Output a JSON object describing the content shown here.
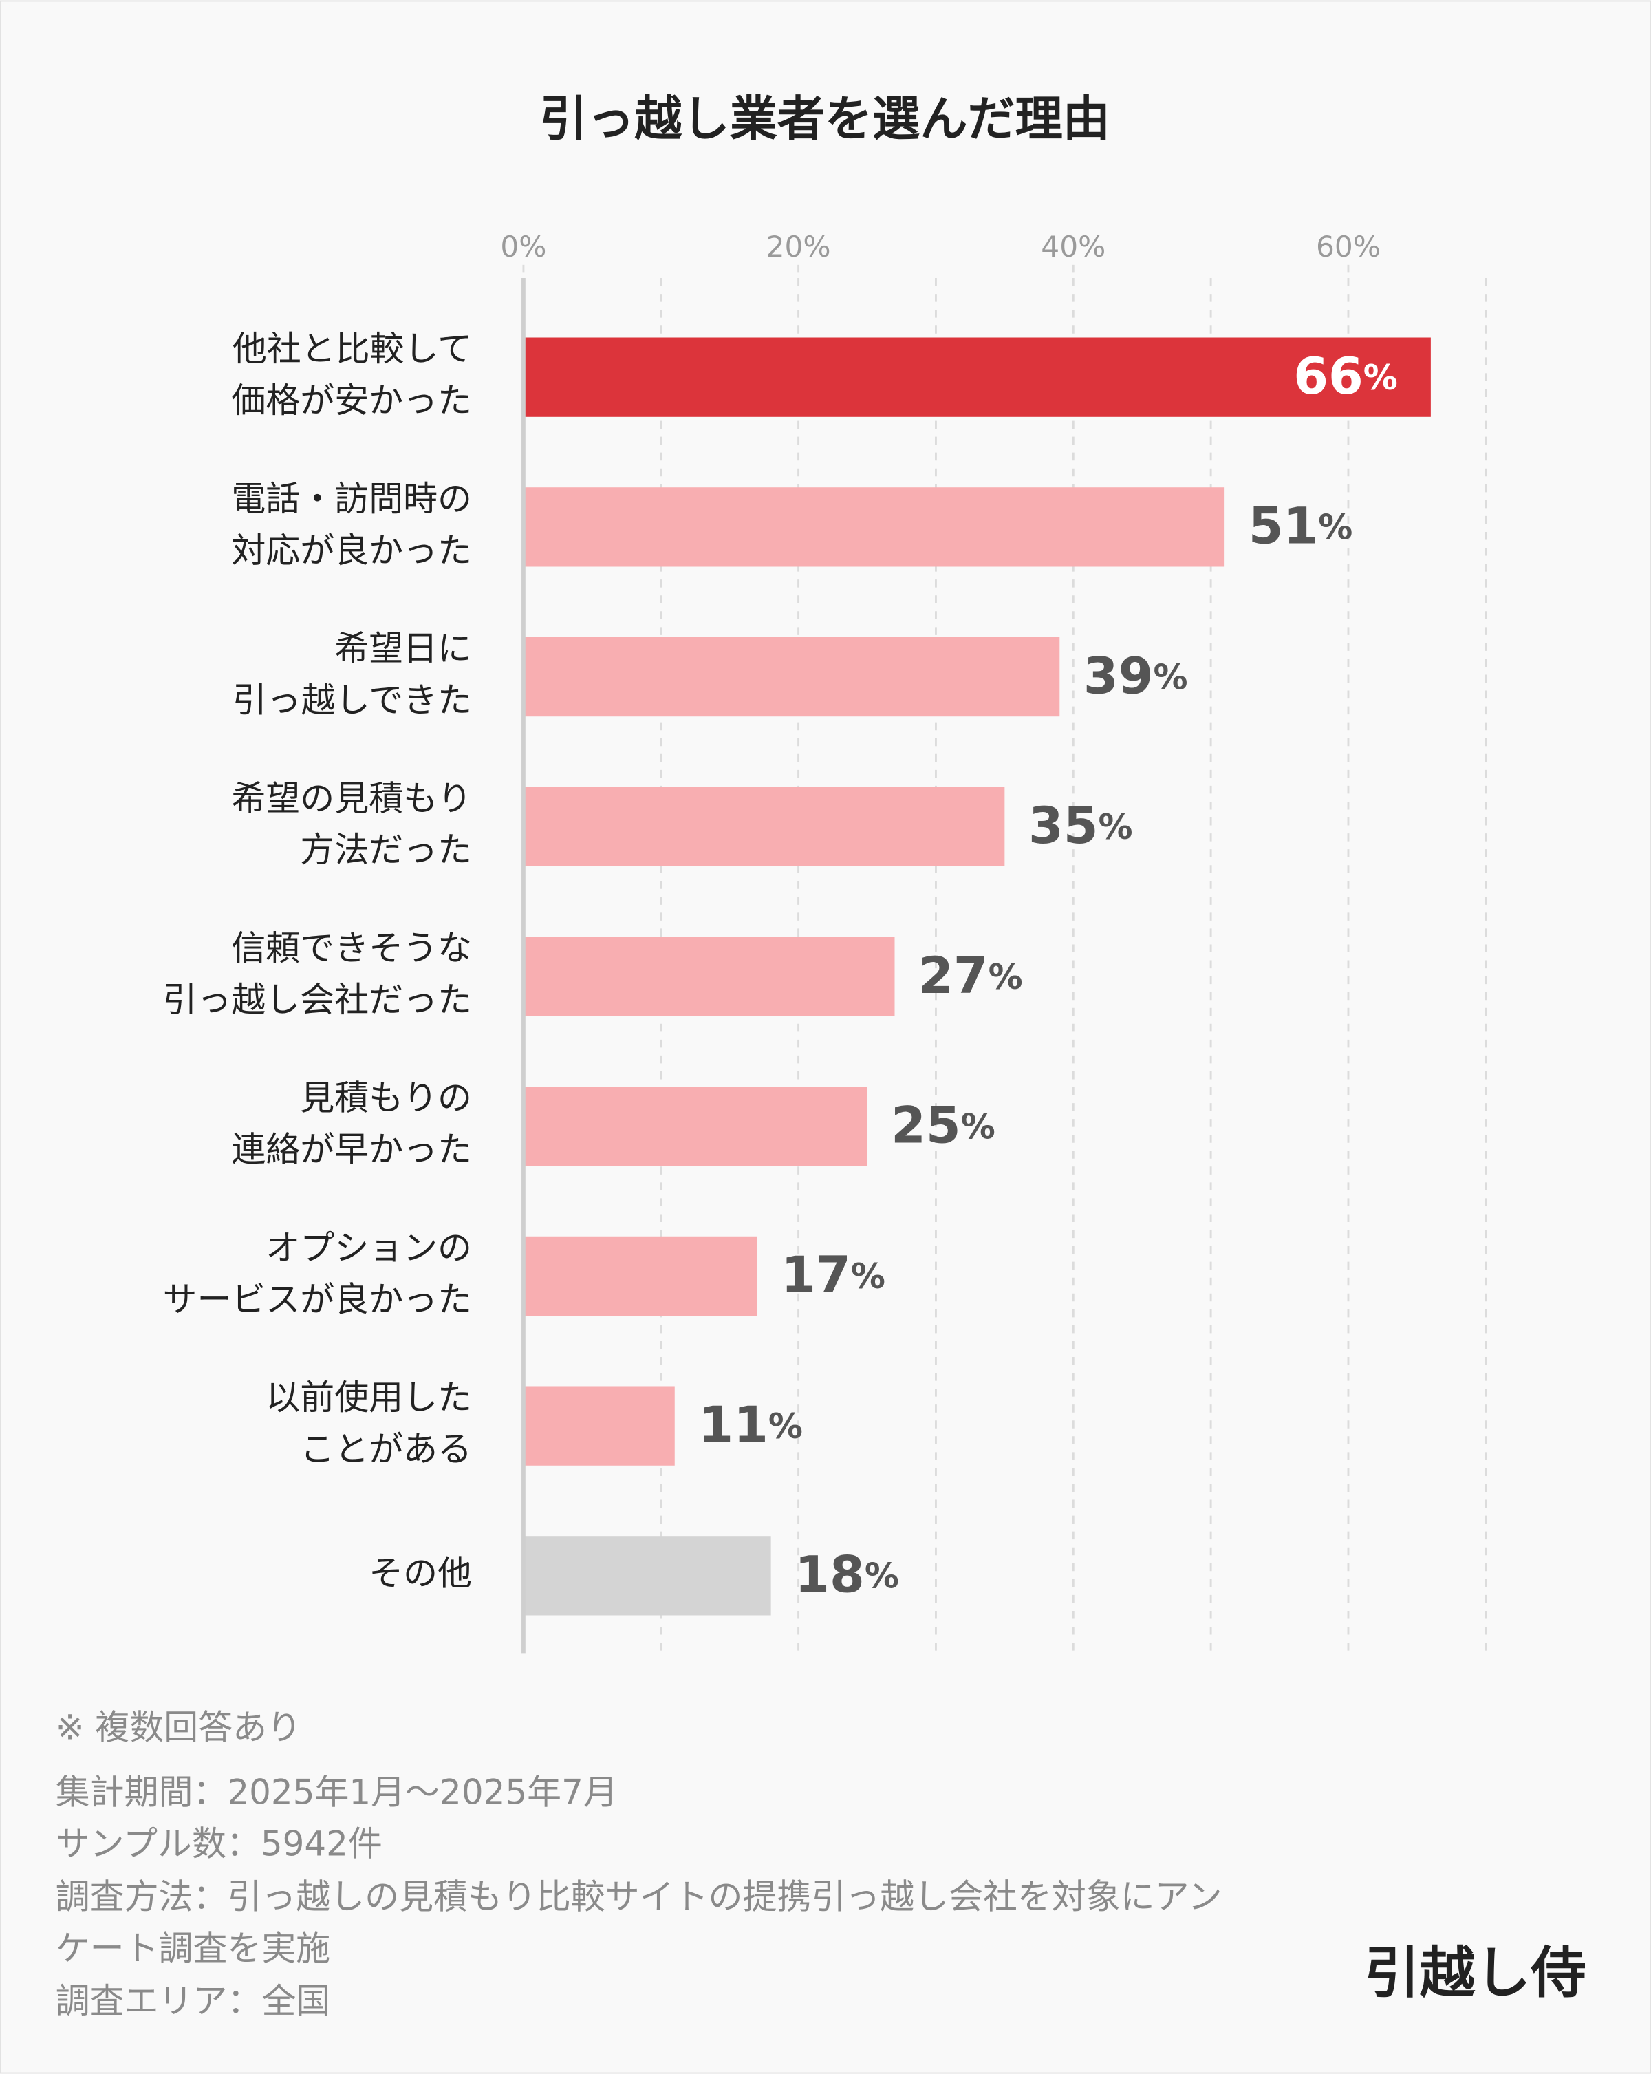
{
  "chart_data": {
    "type": "hbar",
    "title": "引っ越し業者を選んだ理由",
    "categories": [
      [
        "他社と比較して",
        "価格が安かった"
      ],
      [
        "電話・訪問時の",
        "対応が良かった"
      ],
      [
        "希望日に",
        "引っ越しできた"
      ],
      [
        "希望の見積もり",
        "方法だった"
      ],
      [
        "信頼できそうな",
        "引っ越し会社だった"
      ],
      [
        "見積もりの",
        "連絡が早かった"
      ],
      [
        "オプションの",
        "サービスが良かった"
      ],
      [
        "以前使用した",
        "ことがある"
      ],
      [
        "その他"
      ]
    ],
    "values": [
      66,
      51,
      39,
      35,
      27,
      25,
      17,
      11,
      18
    ],
    "value_labels": [
      "66%",
      "51%",
      "39%",
      "35%",
      "27%",
      "25%",
      "17%",
      "11%",
      "18%"
    ],
    "colors": [
      "#dc343b",
      "#f8aeb1",
      "#f8aeb1",
      "#f8aeb1",
      "#f8aeb1",
      "#f8aeb1",
      "#f8aeb1",
      "#f8aeb1",
      "#d4d4d4"
    ],
    "highlight_index": 0,
    "xlim": [
      0,
      70
    ],
    "xticks": [
      {
        "value": 0,
        "label": "0%"
      },
      {
        "value": 20,
        "label": "20%"
      },
      {
        "value": 40,
        "label": "40%"
      },
      {
        "value": 60,
        "label": "60%"
      }
    ],
    "xgrid": [
      10,
      20,
      30,
      40,
      50,
      60,
      70
    ],
    "grid": true
  },
  "notes": [
    "※ 複数回答あり",
    "集計期間：2025年1月～2025年7月",
    "サンプル数：5942件",
    "調査方法：引っ越しの見積もり比較サイトの提携引っ越し会社を対象にアン",
    "ケート調査を実施",
    "調査エリア：全国"
  ],
  "logo": "引越し侍"
}
